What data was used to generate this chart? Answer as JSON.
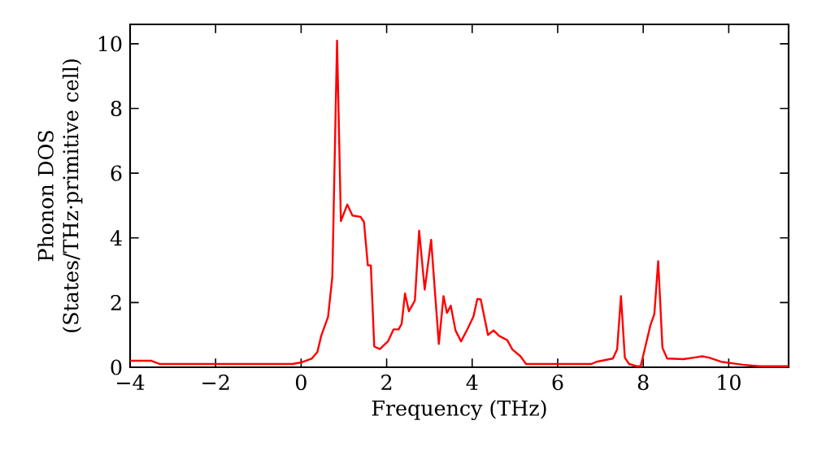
{
  "chart_data": {
    "type": "line",
    "xlabel": "Frequency (THz)",
    "ylabel": "Phonon DOS (States/THz·primitive cell)",
    "xlim": [
      -4,
      11.4
    ],
    "ylim": [
      0,
      10.6
    ],
    "xticks": [
      {
        "value": -4,
        "label": "−4"
      },
      {
        "value": -2,
        "label": "−2"
      },
      0,
      2,
      4,
      6,
      8,
      10
    ],
    "yticks": [
      0,
      2,
      4,
      6,
      8,
      10
    ],
    "series": [
      {
        "color": "#ff0000",
        "x": [
          -4,
          -3.5,
          -3.3,
          -1,
          -0.2,
          0,
          0.25,
          0.38,
          0.47,
          0.63,
          0.73,
          0.84,
          0.93,
          1.08,
          1.2,
          1.39,
          1.47,
          1.56,
          1.63,
          1.71,
          1.84,
          2.03,
          2.16,
          2.28,
          2.35,
          2.43,
          2.52,
          2.66,
          2.76,
          2.89,
          3.04,
          3.22,
          3.33,
          3.41,
          3.5,
          3.61,
          3.74,
          3.89,
          4.03,
          4.12,
          4.2,
          4.37,
          4.5,
          4.63,
          4.82,
          4.94,
          5.13,
          5.26,
          6.78,
          6.91,
          7.29,
          7.39,
          7.48,
          7.57,
          7.67,
          7.86,
          7.94,
          8.05,
          8.17,
          8.26,
          8.35,
          8.45,
          8.56,
          8.94,
          9.19,
          9.38,
          9.54,
          9.82,
          10.33,
          10.71,
          11.4
        ],
        "values": [
          0.2,
          0.2,
          0.1,
          0.1,
          0.1,
          0.15,
          0.27,
          0.47,
          0.97,
          1.56,
          2.8,
          10.1,
          4.52,
          5.03,
          4.69,
          4.65,
          4.49,
          3.15,
          3.15,
          0.64,
          0.56,
          0.8,
          1.17,
          1.17,
          1.34,
          2.28,
          1.73,
          2.06,
          4.22,
          2.4,
          3.94,
          0.72,
          2.2,
          1.68,
          1.9,
          1.14,
          0.8,
          1.18,
          1.57,
          2.11,
          2.1,
          1.0,
          1.14,
          0.97,
          0.84,
          0.55,
          0.34,
          0.1,
          0.1,
          0.17,
          0.27,
          0.55,
          2.2,
          0.3,
          0.1,
          0.03,
          0.03,
          0.64,
          1.31,
          1.64,
          3.28,
          0.6,
          0.27,
          0.25,
          0.3,
          0.34,
          0.3,
          0.17,
          0.08,
          0.03,
          0.03
        ]
      }
    ]
  }
}
